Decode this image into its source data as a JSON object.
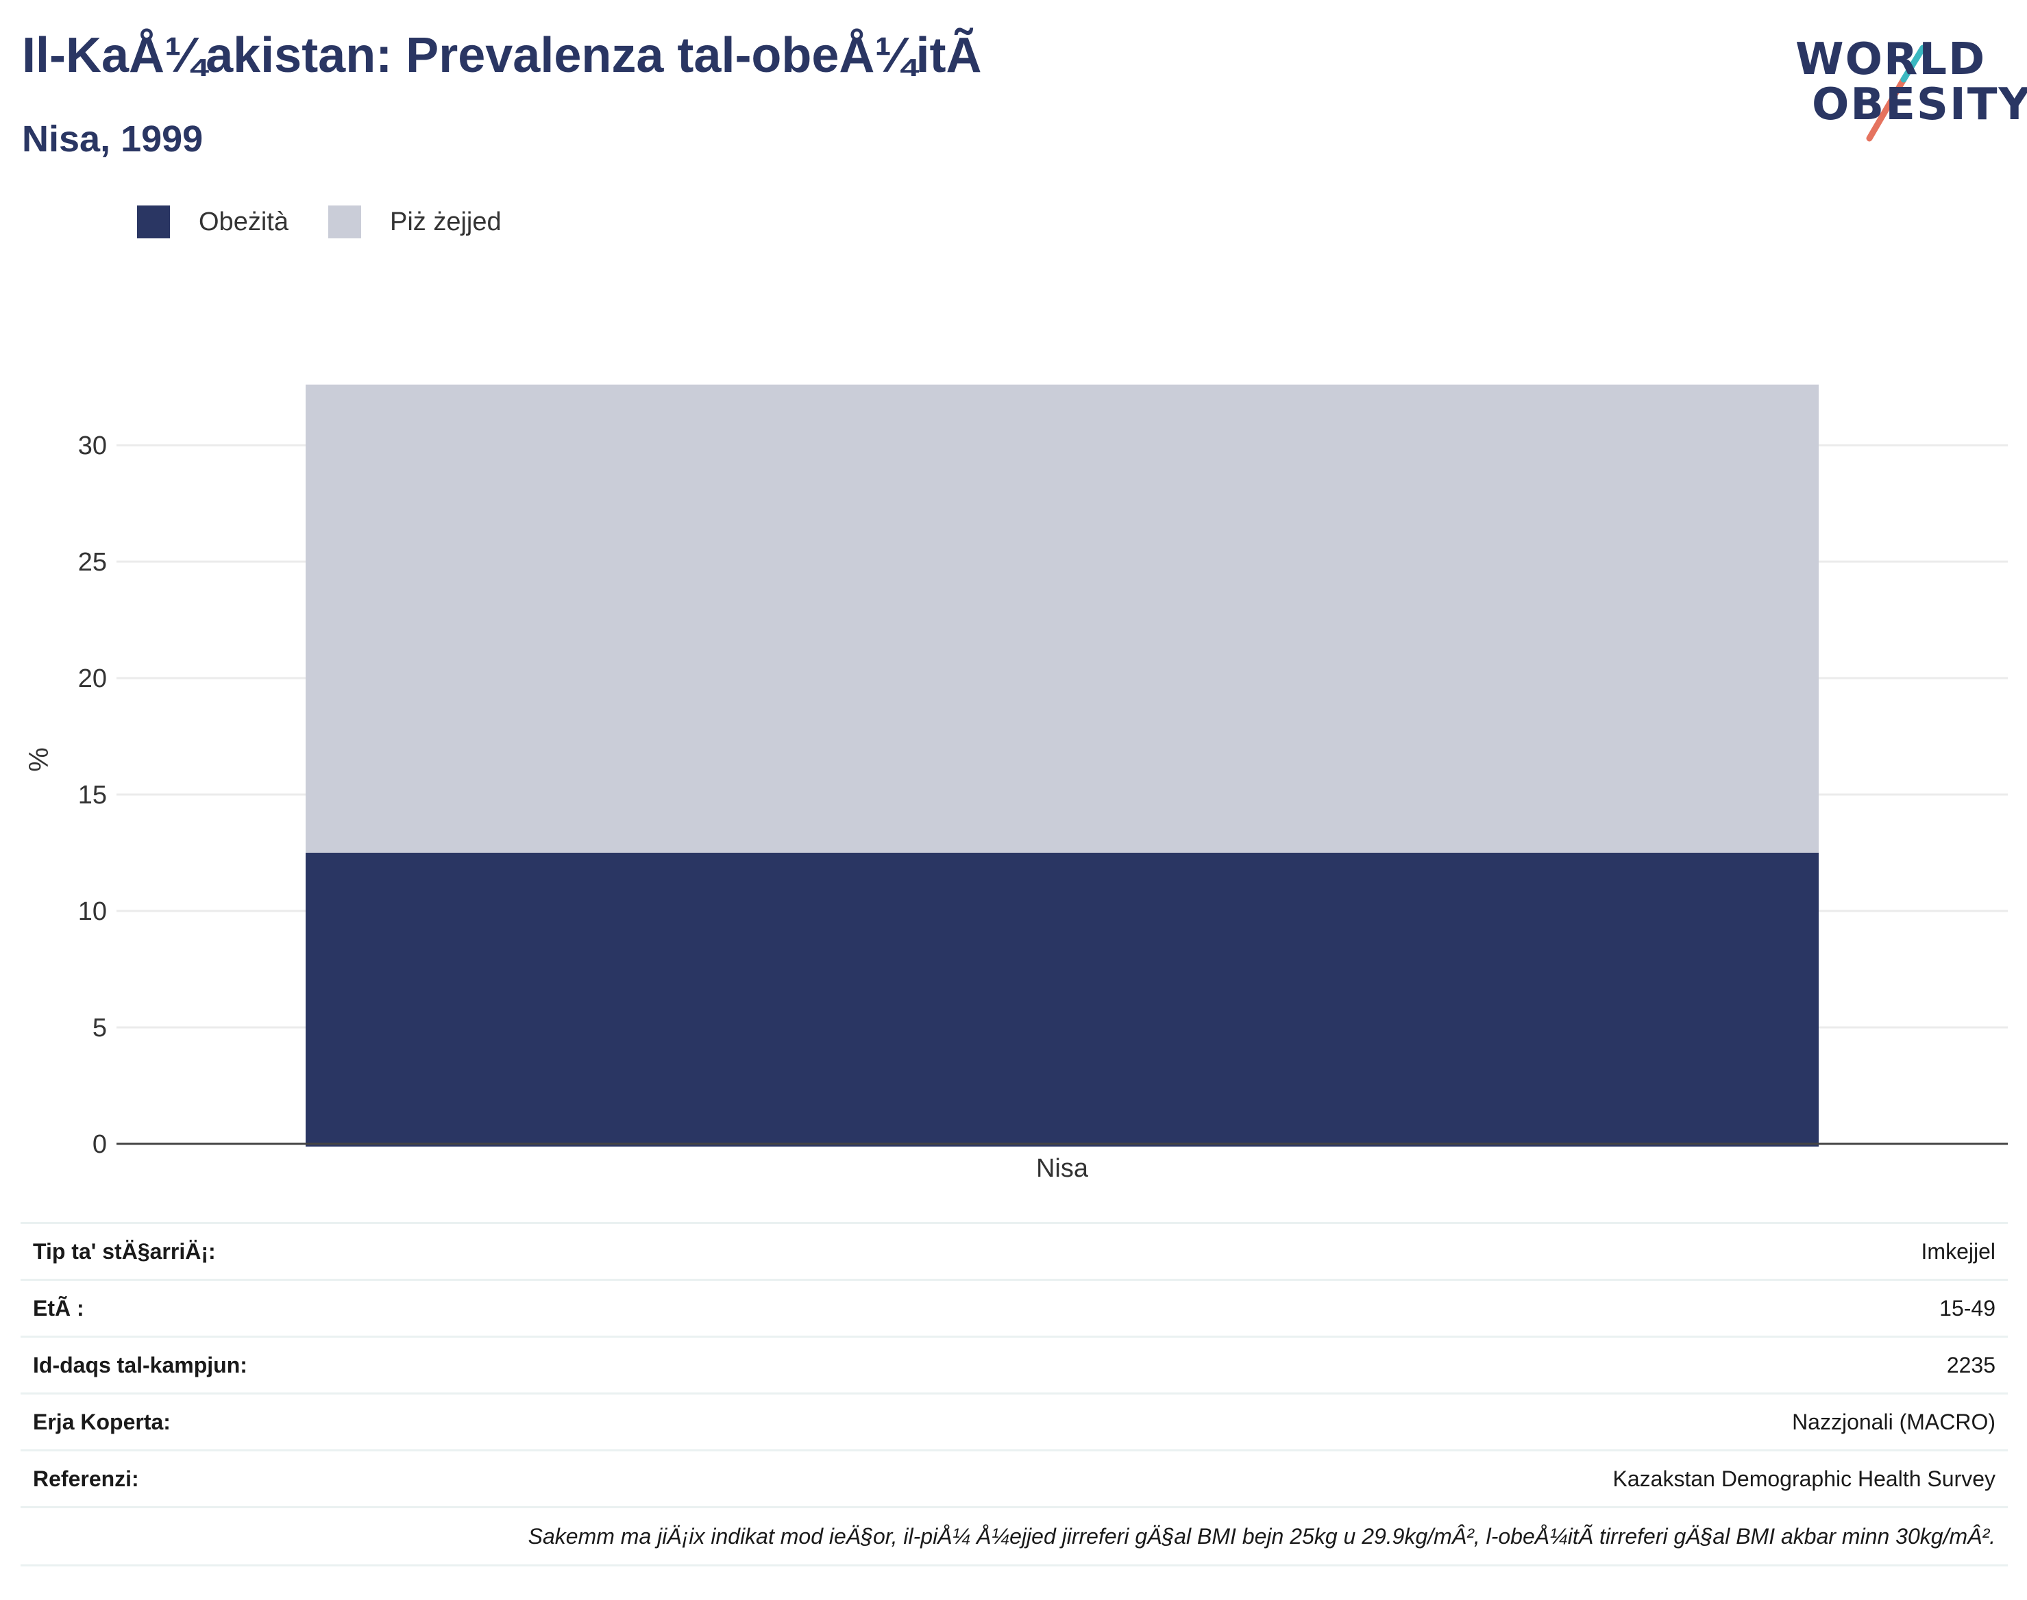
{
  "title": "Il-KaÅ¼akistan: Prevalenza tal-obeÅ¼itÃ",
  "subtitle": "Nisa, 1999",
  "logo": {
    "line1": "WORLD",
    "line2": "OBESITY"
  },
  "colors": {
    "obesity": "#2a3663",
    "overweight": "#cacdd8",
    "accent_teal": "#3bb8c1",
    "accent_coral": "#e5735f"
  },
  "chart_data": {
    "type": "bar",
    "stacked": true,
    "categories": [
      "Nisa"
    ],
    "series": [
      {
        "name": "Obeżità",
        "values": [
          12.5
        ]
      },
      {
        "name": "Piż żejjed",
        "values": [
          20.1
        ]
      }
    ],
    "ylabel": "%",
    "xlabel": "",
    "ylim": [
      0,
      32.6
    ],
    "yticks": [
      0,
      5,
      10,
      15,
      20,
      25,
      30
    ],
    "grid": true,
    "legend_position": "top-left"
  },
  "info": {
    "rows": [
      {
        "key": "Tip ta' stÄ§arriÄ¡:",
        "value": "Imkejjel"
      },
      {
        "key": "EtÃ :",
        "value": "15-49"
      },
      {
        "key": "Id-daqs tal-kampjun:",
        "value": "2235"
      },
      {
        "key": "Erja Koperta:",
        "value": "Nazzjonali (MACRO)"
      },
      {
        "key": "Referenzi:",
        "value": "Kazakstan Demographic Health Survey"
      }
    ],
    "note": "Sakemm ma jiÄ¡ix indikat mod ieÄ§or, il-piÅ¼ Å¼ejjed jirreferi gÄ§al BMI bejn 25kg u 29.9kg/mÂ², l-obeÅ¼itÃ  tirreferi gÄ§al BMI akbar minn 30kg/mÂ²."
  }
}
